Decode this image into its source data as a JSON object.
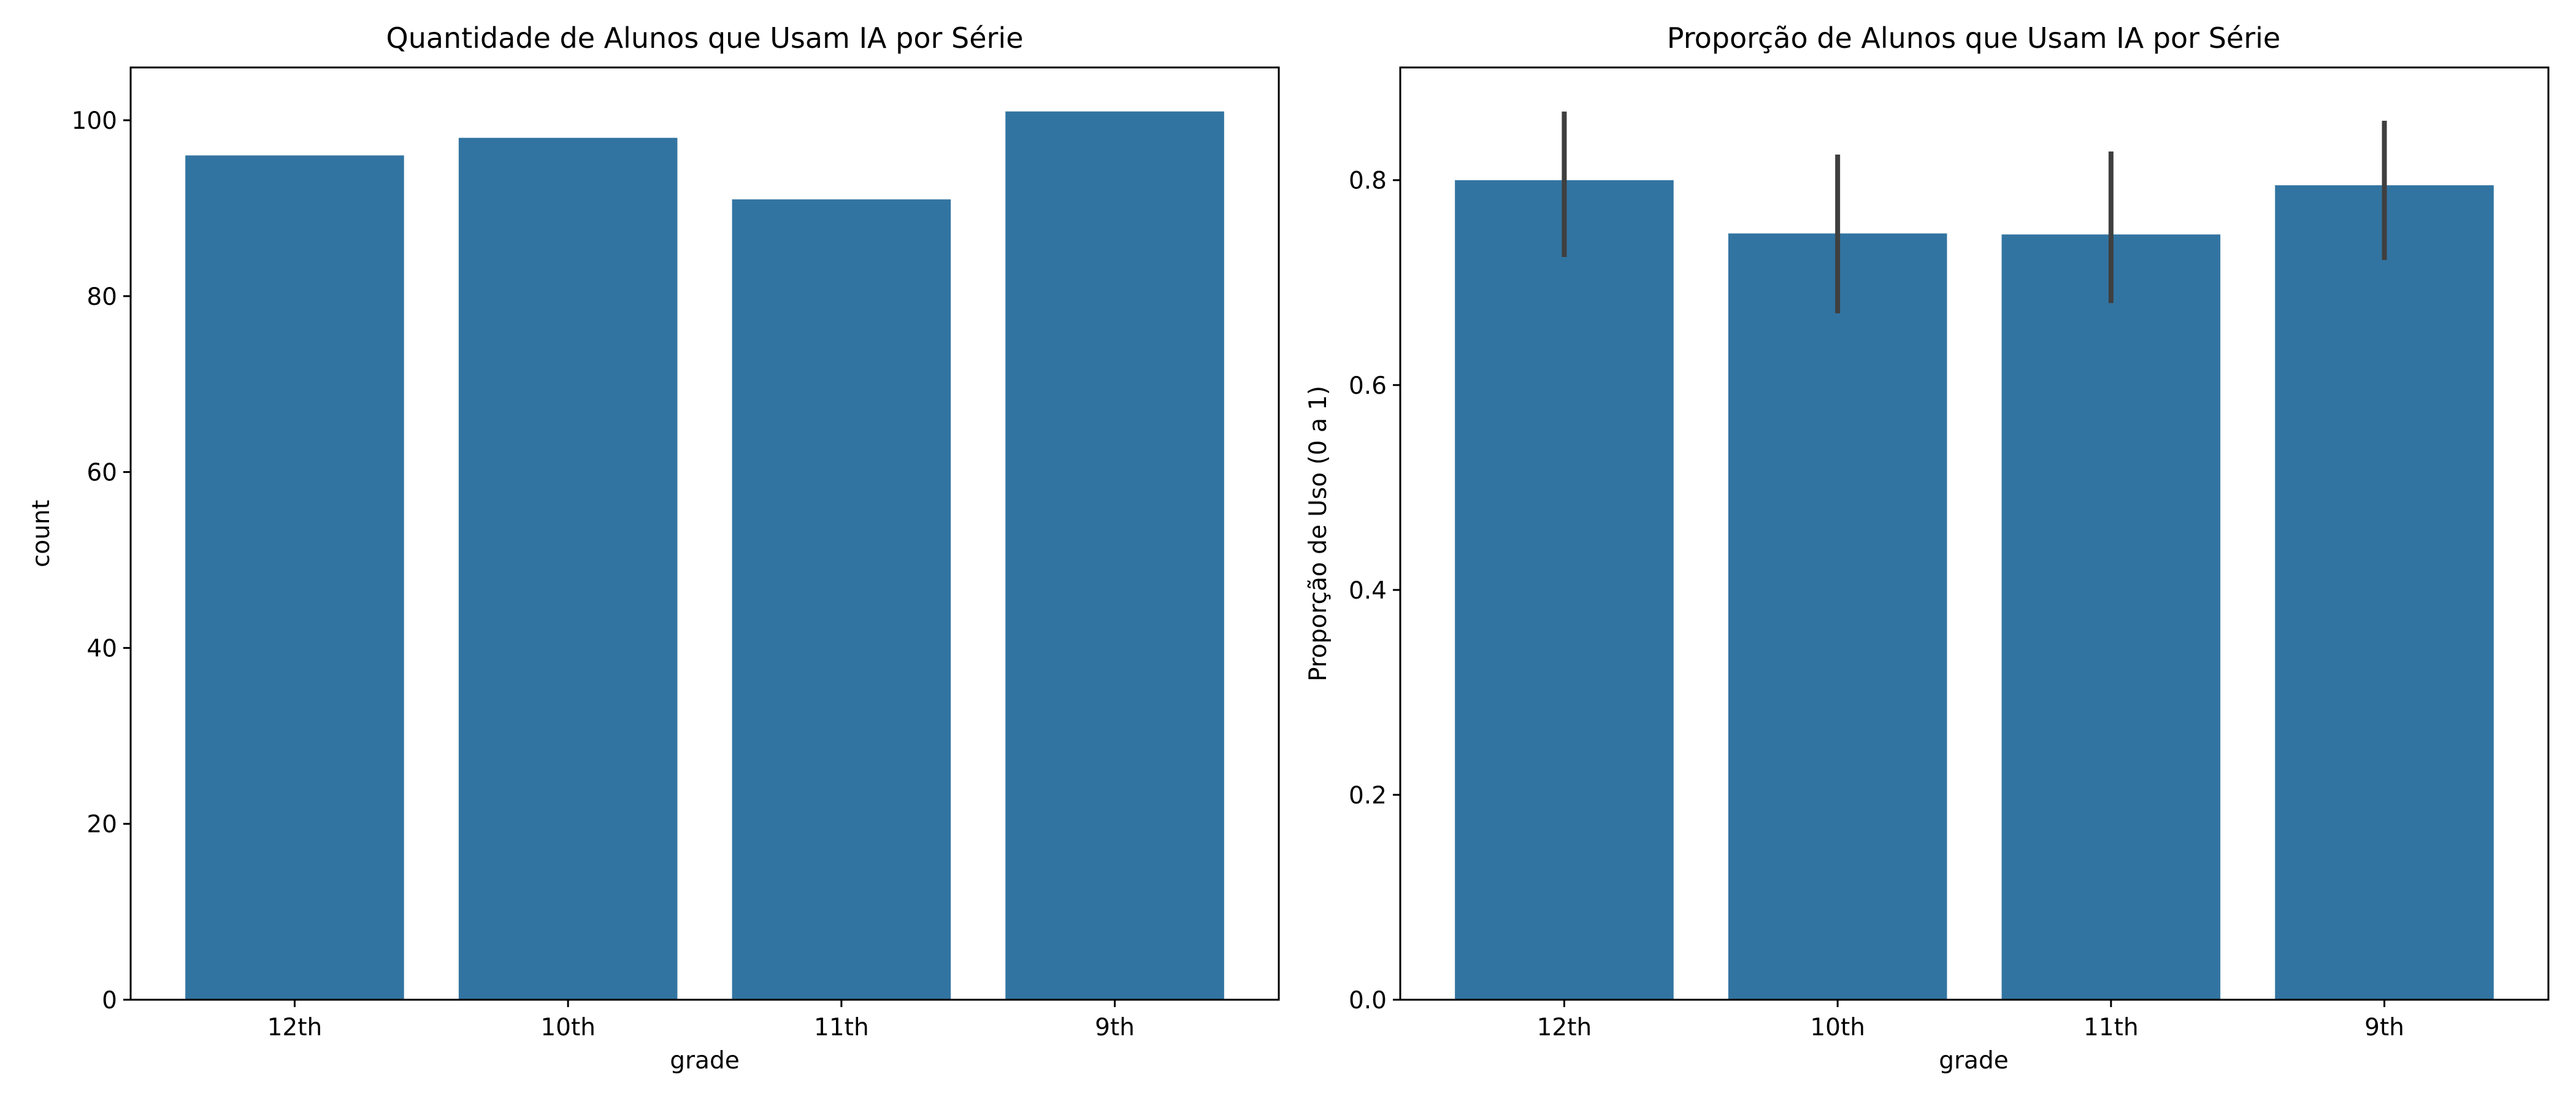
{
  "chart_data": [
    {
      "type": "bar",
      "title": "Quantidade de Alunos que Usam IA por Série",
      "xlabel": "grade",
      "ylabel": "count",
      "categories": [
        "12th",
        "10th",
        "11th",
        "9th"
      ],
      "values": [
        96,
        98,
        91,
        101
      ],
      "ylim": [
        0,
        106
      ],
      "yticks": [
        "0",
        "20",
        "40",
        "60",
        "80",
        "100"
      ],
      "ytick_values": [
        0,
        20,
        40,
        60,
        80,
        100
      ],
      "bar_color": "#3274a1",
      "grid": false
    },
    {
      "type": "bar",
      "title": "Proporção de Alunos que Usam IA por Série",
      "xlabel": "grade",
      "ylabel": "Proporção de Uso (0 a 1)",
      "categories": [
        "12th",
        "10th",
        "11th",
        "9th"
      ],
      "values": [
        0.8,
        0.748,
        0.747,
        0.795
      ],
      "error_bars": [
        [
          0.725,
          0.867
        ],
        [
          0.67,
          0.825
        ],
        [
          0.68,
          0.828
        ],
        [
          0.722,
          0.858
        ]
      ],
      "ylim": [
        0,
        0.91
      ],
      "yticks": [
        "0.0",
        "0.2",
        "0.4",
        "0.6",
        "0.8"
      ],
      "ytick_values": [
        0,
        0.2,
        0.4,
        0.6,
        0.8
      ],
      "bar_color": "#3274a1",
      "errorbar_color": "#3f3f3f",
      "grid": false
    }
  ]
}
